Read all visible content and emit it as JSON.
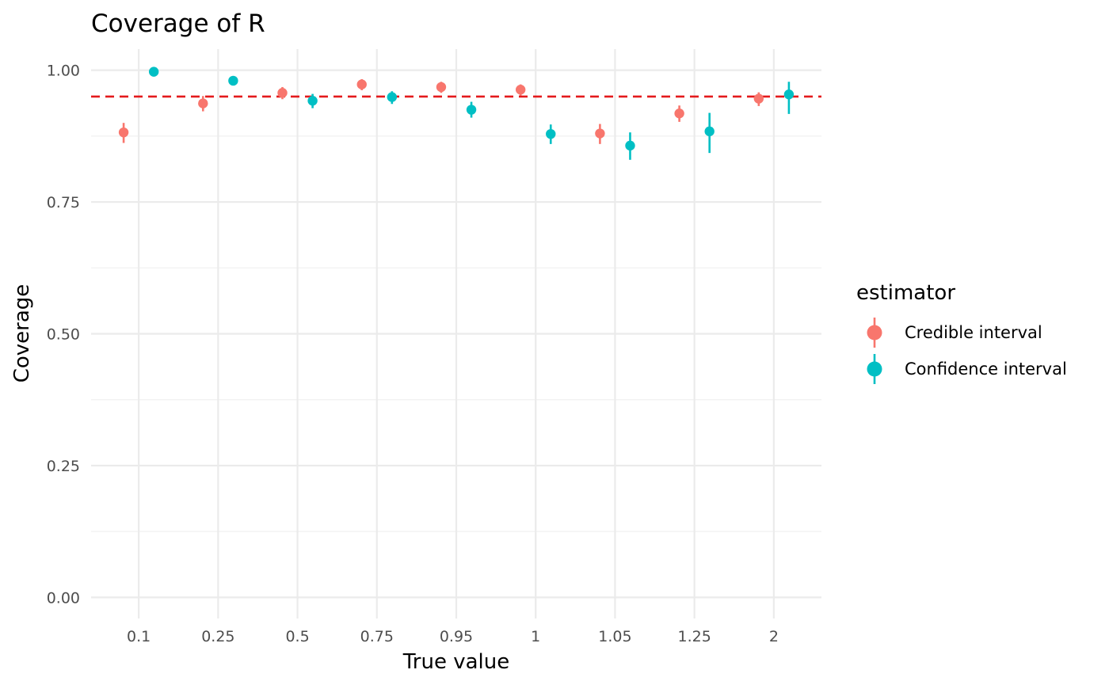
{
  "chart_data": {
    "type": "scatter",
    "title": "Coverage of R",
    "xlabel": "True value",
    "ylabel": "Coverage",
    "categories": [
      "0.1",
      "0.25",
      "0.5",
      "0.75",
      "0.95",
      "1",
      "1.05",
      "1.25",
      "2"
    ],
    "ylim": [
      -0.04,
      1.04
    ],
    "y_ticks": [
      "0.00",
      "0.25",
      "0.50",
      "0.75",
      "1.00"
    ],
    "grid": true,
    "reference_line": {
      "y": 0.95,
      "style": "dashed",
      "color": "#e41a1c"
    },
    "legend": {
      "title": "estimator",
      "position": "right"
    },
    "series": [
      {
        "name": "Credible interval",
        "color": "#f8766d",
        "points": [
          {
            "category": "0.1",
            "y": 0.882,
            "lo": 0.862,
            "hi": 0.9
          },
          {
            "category": "0.25",
            "y": 0.937,
            "lo": 0.922,
            "hi": 0.951
          },
          {
            "category": "0.5",
            "y": 0.957,
            "lo": 0.945,
            "hi": 0.968
          },
          {
            "category": "0.75",
            "y": 0.973,
            "lo": 0.962,
            "hi": 0.983
          },
          {
            "category": "0.95",
            "y": 0.968,
            "lo": 0.957,
            "hi": 0.978
          },
          {
            "category": "1",
            "y": 0.963,
            "lo": 0.952,
            "hi": 0.973
          },
          {
            "category": "1.05",
            "y": 0.88,
            "lo": 0.86,
            "hi": 0.898
          },
          {
            "category": "1.25",
            "y": 0.918,
            "lo": 0.902,
            "hi": 0.933
          },
          {
            "category": "2",
            "y": 0.946,
            "lo": 0.932,
            "hi": 0.958
          }
        ]
      },
      {
        "name": "Confidence interval",
        "color": "#00bfc4",
        "points": [
          {
            "category": "0.1",
            "y": 0.997,
            "lo": 0.995,
            "hi": 0.999
          },
          {
            "category": "0.25",
            "y": 0.98,
            "lo": 0.975,
            "hi": 0.985
          },
          {
            "category": "0.5",
            "y": 0.942,
            "lo": 0.928,
            "hi": 0.955
          },
          {
            "category": "0.75",
            "y": 0.949,
            "lo": 0.936,
            "hi": 0.96
          },
          {
            "category": "0.95",
            "y": 0.925,
            "lo": 0.91,
            "hi": 0.94
          },
          {
            "category": "1",
            "y": 0.879,
            "lo": 0.86,
            "hi": 0.897
          },
          {
            "category": "1.05",
            "y": 0.857,
            "lo": 0.83,
            "hi": 0.882
          },
          {
            "category": "1.25",
            "y": 0.884,
            "lo": 0.843,
            "hi": 0.919
          },
          {
            "category": "2",
            "y": 0.954,
            "lo": 0.917,
            "hi": 0.978
          }
        ]
      }
    ]
  }
}
